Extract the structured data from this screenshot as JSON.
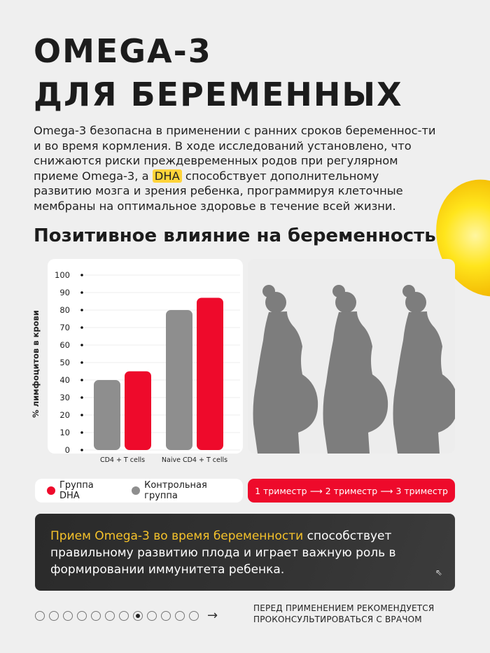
{
  "header": {
    "title_line1": "OMEGA-3",
    "title_line2": "ДЛЯ БЕРЕМЕННЫХ"
  },
  "intro": {
    "part1": "Omega-3 безопасна в применении с ранних сроков беременнос-ти и во время кормления. В ходе исследований установлено, что снижаются риски преждевременных родов при регулярном приеме Omega-3, а ",
    "highlight": "DHA",
    "part2": " способствует дополнительному развитию мозга и зрения ребенка, программируя клеточные мембраны на оптимальное здоровье в течение всей жизни."
  },
  "subtitle": "Позитивное влияние на беременность",
  "chart_data": {
    "type": "bar",
    "categories": [
      "CD4 + T cells",
      "Naive CD4 + T cells"
    ],
    "series": [
      {
        "name": "Контрольная группа",
        "color": "#8e8e8e",
        "values": [
          40,
          80
        ]
      },
      {
        "name": "Группа DHA",
        "color": "#ee0a2b",
        "values": [
          45,
          87
        ]
      }
    ],
    "ylabel": "% лимфоцитов в крови",
    "ylim": [
      0,
      100
    ],
    "yticks": [
      0,
      10,
      20,
      30,
      40,
      50,
      60,
      70,
      80,
      90,
      100
    ],
    "grid": true,
    "legend": "bottom"
  },
  "legend": {
    "items": [
      {
        "label": "Группа DHA",
        "color": "#ee0a2b"
      },
      {
        "label": "Контрольная группа",
        "color": "#8e8e8e"
      }
    ]
  },
  "trimesters": {
    "items": [
      "1 триместр",
      "2 триместр",
      "3 триместр"
    ],
    "arrow": "⟶"
  },
  "callout": {
    "highlight": "Прием Omega-3 во время беременности",
    "rest": " способствует правильному развитию плода и играет важную роль в формировании иммунитета ребенка.",
    "icon": "arrow-up-left-icon"
  },
  "pager": {
    "total": 12,
    "active": 8,
    "next": "→"
  },
  "note": {
    "line1": "ПЕРЕД ПРИМЕНЕНИЕМ РЕКОМЕНДУЕТСЯ",
    "line2": "ПРОКОНСУЛЬТИРОВАТЬСЯ С ВРАЧОМ"
  }
}
